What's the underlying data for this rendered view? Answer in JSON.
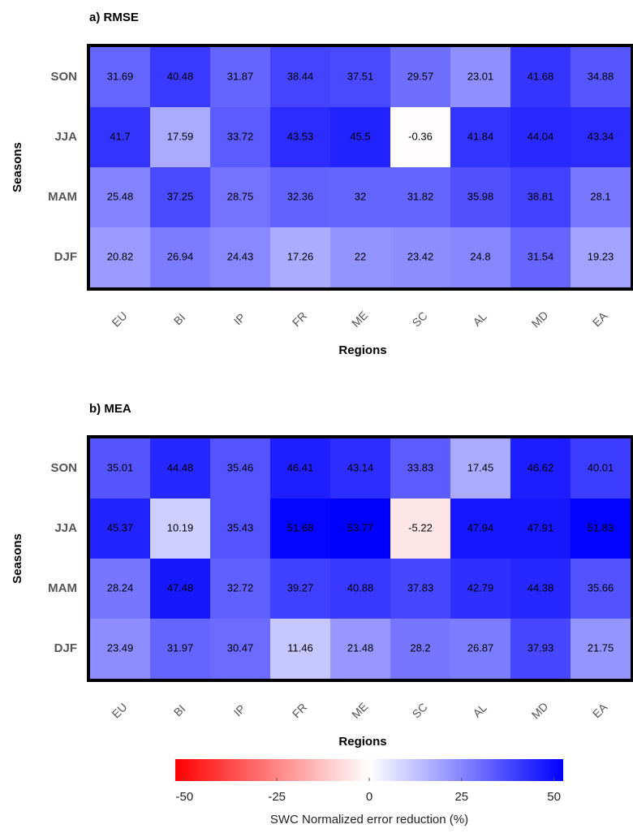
{
  "chart_data": [
    {
      "type": "heatmap",
      "title": "a) RMSE",
      "x_label": "Regions",
      "y_label": "Seasons",
      "categories": [
        "EU",
        "BI",
        "IP",
        "FR",
        "ME",
        "SC",
        "AL",
        "MD",
        "EA"
      ],
      "rows": [
        "SON",
        "JJA",
        "MAM",
        "DJF"
      ],
      "values": [
        [
          31.69,
          40.48,
          31.87,
          38.44,
          37.51,
          29.57,
          23.01,
          41.68,
          34.88
        ],
        [
          41.7,
          17.59,
          33.72,
          43.53,
          45.5,
          -0.36,
          41.84,
          44.04,
          43.34
        ],
        [
          25.48,
          37.25,
          28.75,
          32.36,
          32,
          31.82,
          35.98,
          38.81,
          28.1
        ],
        [
          20.82,
          26.94,
          24.43,
          17.26,
          22,
          23.42,
          24.8,
          31.54,
          19.23
        ]
      ]
    },
    {
      "type": "heatmap",
      "title": "b) MEA",
      "x_label": "Regions",
      "y_label": "Seasons",
      "categories": [
        "EU",
        "BI",
        "IP",
        "FR",
        "ME",
        "SC",
        "AL",
        "MD",
        "EA"
      ],
      "rows": [
        "SON",
        "JJA",
        "MAM",
        "DJF"
      ],
      "values": [
        [
          35.01,
          44.48,
          35.46,
          46.41,
          43.14,
          33.83,
          17.45,
          46.62,
          40.01
        ],
        [
          45.37,
          10.19,
          35.43,
          51.68,
          53.77,
          -5.22,
          47.94,
          47.91,
          51.83
        ],
        [
          28.24,
          47.48,
          32.72,
          39.27,
          40.88,
          37.83,
          42.79,
          44.38,
          35.66
        ],
        [
          23.49,
          31.97,
          30.47,
          11.46,
          21.48,
          28.2,
          26.87,
          37.93,
          21.75
        ]
      ],
      "colorbar_label": "SWC Normalized error reduction (%)",
      "zlim": [
        -52.5,
        52.5
      ],
      "zticks": [
        -50,
        -25,
        0,
        25,
        50
      ],
      "colors": [
        "#ff0000",
        "#ffffff",
        "#0000ff"
      ]
    }
  ]
}
